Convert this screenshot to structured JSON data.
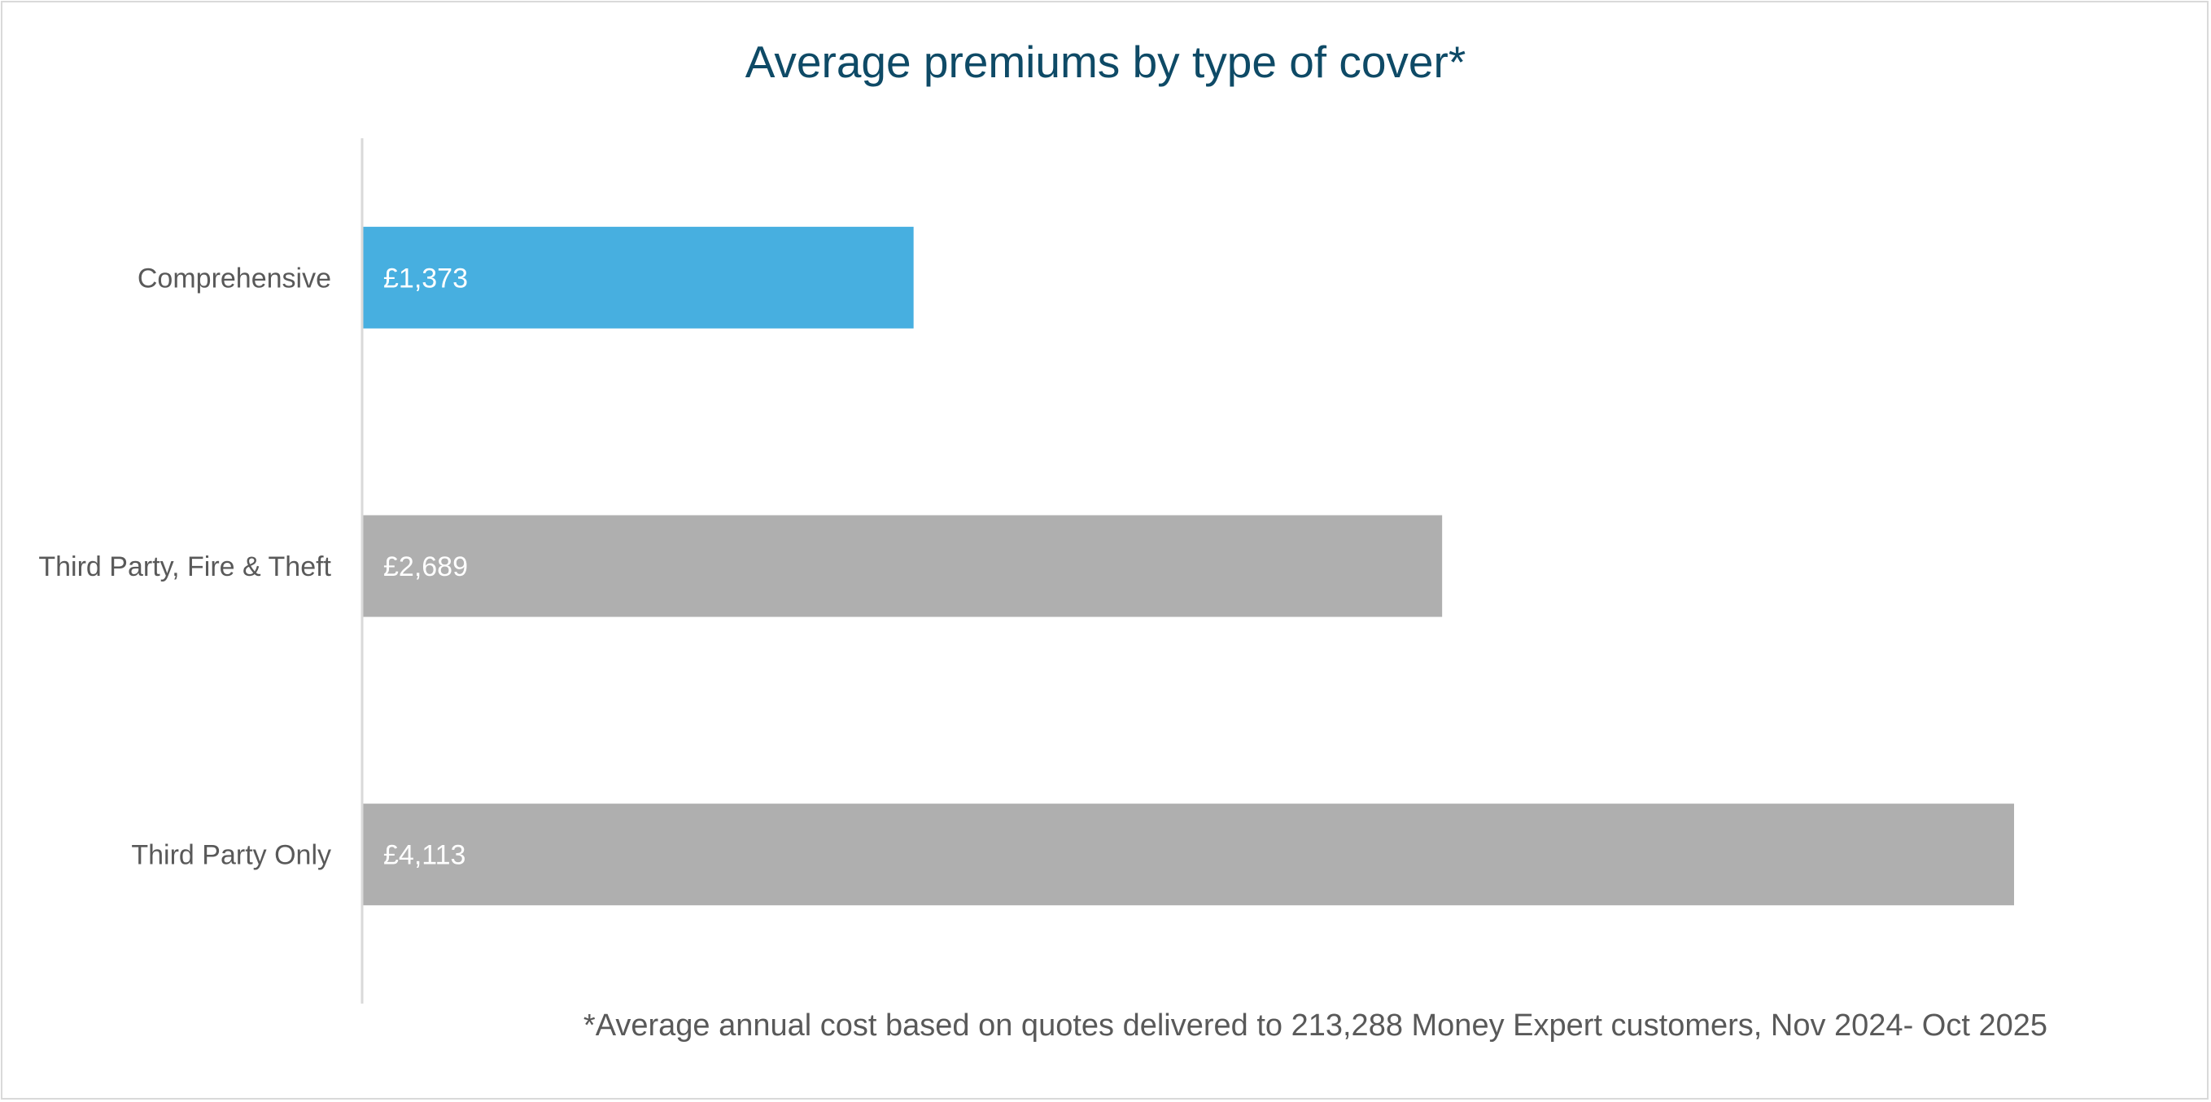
{
  "chart_data": {
    "type": "bar",
    "orientation": "horizontal",
    "title": "Average premiums by type of cover*",
    "categories": [
      "Comprehensive",
      "Third Party, Fire & Theft",
      "Third Party Only"
    ],
    "values": [
      1373,
      2689,
      4113
    ],
    "data_labels": [
      "£1,373",
      "£2,689",
      "£4,113"
    ],
    "colors": [
      "#47afe0",
      "#afafaf",
      "#afafaf"
    ],
    "xlabel": "",
    "ylabel": "",
    "xlim": [
      0,
      4113
    ],
    "grid": false,
    "legend": "none",
    "footnote": "*Average annual cost based on quotes delivered to 213,288 Money Expert customers, Nov 2024- Oct 2025"
  }
}
